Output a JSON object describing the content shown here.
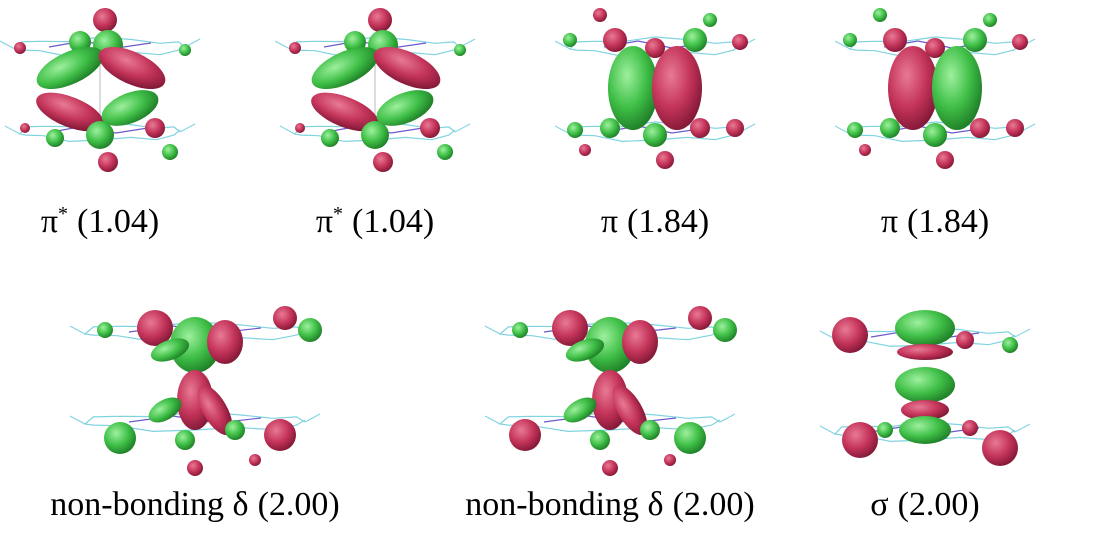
{
  "panels": [
    {
      "symbol": "π",
      "sup": "*",
      "occupation": "(1.04)"
    },
    {
      "symbol": "π",
      "sup": "*",
      "occupation": "(1.04)"
    },
    {
      "symbol": "π",
      "occupation": "(1.84)"
    },
    {
      "symbol": "π",
      "occupation": "(1.84)"
    },
    {
      "symbol": "non-bonding δ",
      "occupation": "(2.00)"
    },
    {
      "symbol": "non-bonding δ",
      "occupation": "(2.00)"
    },
    {
      "symbol": "σ",
      "occupation": "(2.00)"
    }
  ]
}
